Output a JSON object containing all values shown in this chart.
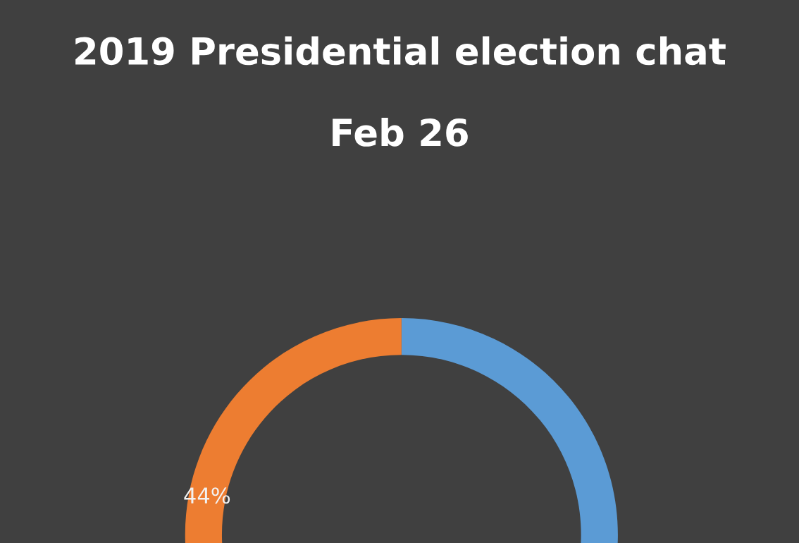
{
  "chart_data": {
    "type": "donut",
    "title": "2019 Presidential election chat",
    "subtitle": "Feb 26",
    "categories": [
      null,
      null
    ],
    "values": [
      56,
      44
    ],
    "colors": [
      "#5b9bd5",
      "#ed7d31"
    ],
    "value_labels": [
      null,
      "44%"
    ]
  }
}
